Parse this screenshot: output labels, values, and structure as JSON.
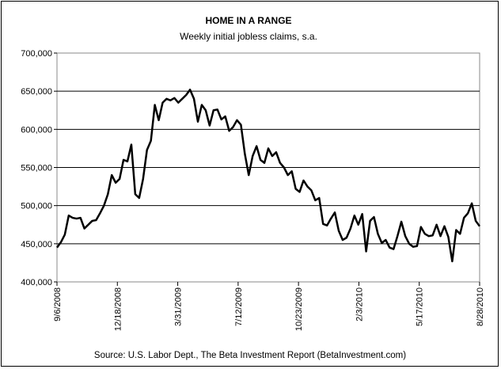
{
  "chart_data": {
    "type": "line",
    "title": "HOME IN A RANGE",
    "subtitle": "Weekly initial jobless claims, s.a.",
    "source": "Source: U.S. Labor Dept., The Beta Investment Report (BetaInvestment.com)",
    "xlabel": "",
    "ylabel": "",
    "ylim": [
      400000,
      700000
    ],
    "y_ticks": [
      400000,
      450000,
      500000,
      550000,
      600000,
      650000,
      700000
    ],
    "y_tick_labels": [
      "400,000",
      "450,000",
      "500,000",
      "550,000",
      "600,000",
      "650,000",
      "700,000"
    ],
    "x_tick_labels": [
      "9/6/2008",
      "12/18/2008",
      "3/31/2009",
      "7/12/2009",
      "10/23/2009",
      "2/3/2010",
      "5/17/2010",
      "8/28/2010"
    ],
    "grid": "horizontal",
    "line_color": "#000000",
    "series": [
      {
        "values": [
          445000,
          452000,
          462000,
          487000,
          484000,
          483000,
          484000,
          470000,
          475000,
          480000,
          481000,
          490000,
          500000,
          515000,
          540000,
          530000,
          535000,
          560000,
          558000,
          580000,
          515000,
          510000,
          535000,
          573000,
          585000,
          632000,
          612000,
          635000,
          640000,
          638000,
          641000,
          635000,
          640000,
          645000,
          652000,
          640000,
          610000,
          632000,
          625000,
          605000,
          625000,
          626000,
          613000,
          617000,
          598000,
          603000,
          612000,
          606000,
          568000,
          540000,
          565000,
          578000,
          560000,
          556000,
          575000,
          565000,
          570000,
          556000,
          550000,
          540000,
          545000,
          522000,
          518000,
          533000,
          525000,
          520000,
          507000,
          510000,
          476000,
          474000,
          483000,
          491000,
          467000,
          455000,
          458000,
          470000,
          487000,
          475000,
          489000,
          440000,
          480000,
          485000,
          463000,
          451000,
          455000,
          445000,
          443000,
          460000,
          479000,
          460000,
          450000,
          446000,
          447000,
          472000,
          463000,
          460000,
          461000,
          475000,
          460000,
          473000,
          459000,
          427000,
          468000,
          463000,
          484000,
          490000,
          503000,
          480000,
          473000
        ]
      }
    ]
  }
}
